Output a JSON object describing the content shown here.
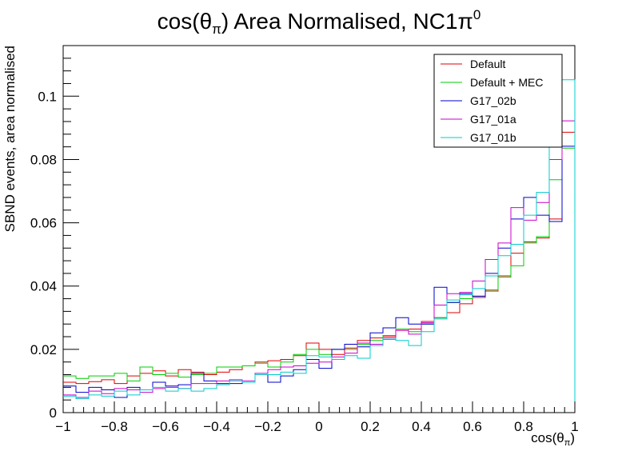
{
  "chart_data": {
    "type": "line",
    "title": "cos(θ_π) Area Normalised, NC1π⁰",
    "title_parts": {
      "main": "cos(θ",
      "sub": "π",
      "mid": ") Area Normalised, NC1π",
      "sup": "0"
    },
    "xlabel": "cos(θ_π)",
    "xlabel_parts": {
      "main": "cos(θ",
      "sub": "π",
      "end": ")"
    },
    "ylabel": "SBND events, area normalised",
    "xlim": [
      -1,
      1
    ],
    "ylim": [
      0,
      0.116
    ],
    "x_ticks": [
      -1,
      -0.8,
      -0.6,
      -0.4,
      -0.2,
      0,
      0.2,
      0.4,
      0.6,
      0.8,
      1
    ],
    "x_tick_labels": [
      "−1",
      "−0.8",
      "−0.6",
      "−0.4",
      "−0.2",
      "0",
      "0.2",
      "0.4",
      "0.6",
      "0.8",
      "1"
    ],
    "y_ticks": [
      0,
      0.02,
      0.04,
      0.06,
      0.08,
      0.1
    ],
    "y_tick_labels": [
      "0",
      "0.02",
      "0.04",
      "0.06",
      "0.08",
      "0.1"
    ],
    "grid": false,
    "legend_position": "top-right",
    "bin_edges_start": -1,
    "bin_width": 0.05,
    "series": [
      {
        "name": "Default",
        "color": "#e00000",
        "values": [
          0.0096,
          0.0092,
          0.0098,
          0.0104,
          0.0092,
          0.0116,
          0.0124,
          0.0132,
          0.0116,
          0.0136,
          0.0128,
          0.012,
          0.0128,
          0.0136,
          0.0148,
          0.016,
          0.0164,
          0.0168,
          0.018,
          0.022,
          0.02,
          0.0184,
          0.0204,
          0.0228,
          0.0236,
          0.024,
          0.026,
          0.0264,
          0.0288,
          0.03,
          0.0316,
          0.0344,
          0.0364,
          0.0384,
          0.0432,
          0.0504,
          0.054,
          0.0552,
          0.0612,
          0.0886
        ]
      },
      {
        "name": "Default + MEC",
        "color": "#00cc00",
        "values": [
          0.0116,
          0.0108,
          0.0116,
          0.0116,
          0.0124,
          0.01,
          0.0144,
          0.012,
          0.0124,
          0.0112,
          0.012,
          0.0124,
          0.0144,
          0.0144,
          0.0148,
          0.0156,
          0.0144,
          0.016,
          0.0184,
          0.02,
          0.0184,
          0.02,
          0.02,
          0.0216,
          0.0228,
          0.0244,
          0.0264,
          0.0256,
          0.028,
          0.03,
          0.0348,
          0.036,
          0.0368,
          0.0388,
          0.0428,
          0.0464,
          0.0536,
          0.0556,
          0.0736,
          0.0836
        ]
      },
      {
        "name": "G17_02b",
        "color": "#0000cc",
        "values": [
          0.0084,
          0.0064,
          0.008,
          0.0072,
          0.0048,
          0.008,
          0.0072,
          0.0096,
          0.0084,
          0.0088,
          0.0124,
          0.01,
          0.0092,
          0.0092,
          0.0096,
          0.012,
          0.0096,
          0.0116,
          0.0136,
          0.0168,
          0.014,
          0.02,
          0.0216,
          0.0208,
          0.0252,
          0.0268,
          0.03,
          0.028,
          0.028,
          0.0396,
          0.0348,
          0.0376,
          0.0368,
          0.044,
          0.052,
          0.0612,
          0.068,
          0.0624,
          0.0604,
          0.0842
        ]
      },
      {
        "name": "G17_01a",
        "color": "#cc00cc",
        "values": [
          0.0056,
          0.0048,
          0.0068,
          0.006,
          0.0076,
          0.0072,
          0.0064,
          0.0076,
          0.008,
          0.0076,
          0.0092,
          0.0092,
          0.01,
          0.0104,
          0.01,
          0.0124,
          0.0136,
          0.0144,
          0.0148,
          0.0156,
          0.016,
          0.0176,
          0.0188,
          0.022,
          0.0216,
          0.0232,
          0.026,
          0.0248,
          0.0284,
          0.034,
          0.0376,
          0.038,
          0.0416,
          0.0484,
          0.0536,
          0.0648,
          0.0608,
          0.0664,
          0.08,
          0.0922
        ]
      },
      {
        "name": "G17_01b",
        "color": "#00cccc",
        "values": [
          0.0052,
          0.0044,
          0.0056,
          0.0052,
          0.0068,
          0.0056,
          0.0072,
          0.008,
          0.0068,
          0.0076,
          0.0068,
          0.0076,
          0.0088,
          0.01,
          0.0096,
          0.012,
          0.012,
          0.0128,
          0.0124,
          0.018,
          0.0176,
          0.0168,
          0.018,
          0.0172,
          0.0212,
          0.0236,
          0.0228,
          0.0212,
          0.0256,
          0.0296,
          0.0356,
          0.0372,
          0.0392,
          0.0432,
          0.0496,
          0.0532,
          0.0624,
          0.0696,
          0.086,
          0.1052
        ]
      }
    ]
  }
}
